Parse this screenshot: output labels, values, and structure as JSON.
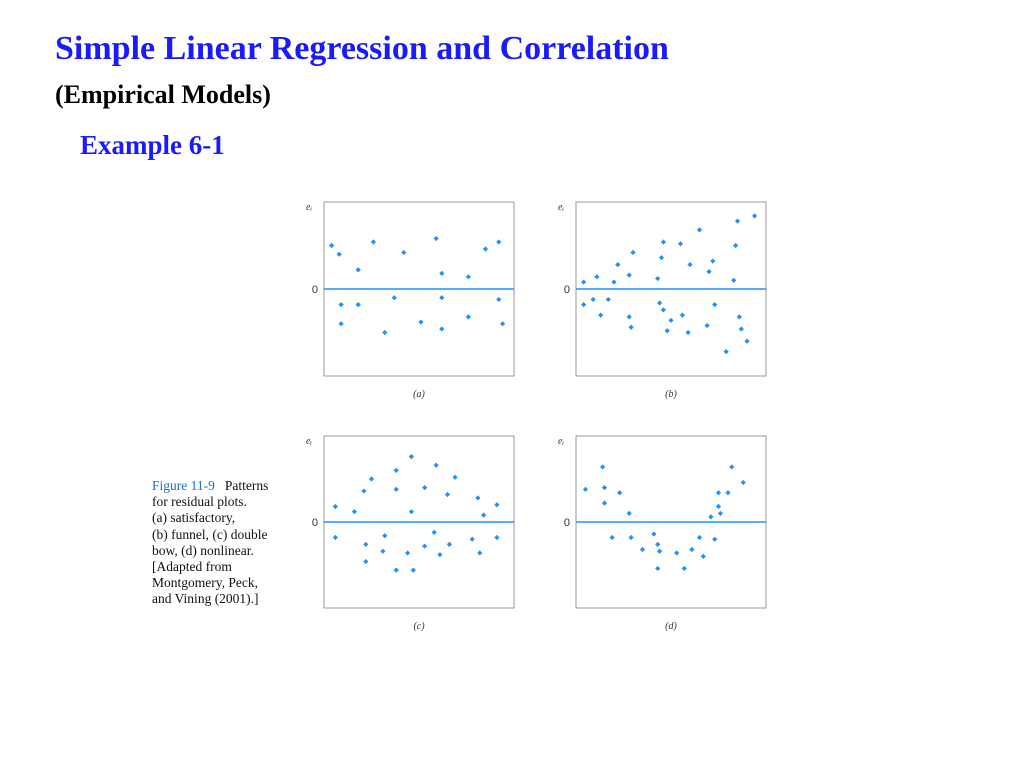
{
  "slide": {
    "title": "Simple Linear Regression and Correlation",
    "subtitle": "(Empirical Models)",
    "example": "Example 6-1"
  },
  "caption": {
    "figure_label": "Figure 11-9",
    "lines": [
      "Patterns",
      "for residual plots.",
      "(a) satisfactory,",
      "(b) funnel, (c) double",
      "bow, (d) nonlinear.",
      "[Adapted from",
      "Montgomery, Peck,",
      "and Vining (2001).]"
    ]
  },
  "colors": {
    "title": "#1a1aff",
    "points": "#1e90ff",
    "zero_line": "#1e90ff"
  },
  "chart_data": [
    {
      "type": "scatter",
      "panel_label": "(a)",
      "ylabel": "eᵢ",
      "zero_tick": "0",
      "xlim": [
        0,
        10
      ],
      "ylim": [
        -5,
        5
      ],
      "points": [
        [
          0.4,
          2.5
        ],
        [
          0.8,
          2.0
        ],
        [
          0.9,
          -0.9
        ],
        [
          0.9,
          -2.0
        ],
        [
          1.8,
          1.1
        ],
        [
          1.8,
          -0.9
        ],
        [
          2.6,
          2.7
        ],
        [
          3.2,
          -2.5
        ],
        [
          3.7,
          -0.5
        ],
        [
          4.2,
          2.1
        ],
        [
          5.1,
          -1.9
        ],
        [
          5.9,
          2.9
        ],
        [
          6.2,
          0.9
        ],
        [
          6.2,
          -0.5
        ],
        [
          6.2,
          -2.3
        ],
        [
          7.6,
          0.7
        ],
        [
          7.6,
          -1.6
        ],
        [
          8.5,
          2.3
        ],
        [
          9.2,
          2.7
        ],
        [
          9.2,
          -0.6
        ],
        [
          9.4,
          -2.0
        ]
      ]
    },
    {
      "type": "scatter",
      "panel_label": "(b)",
      "ylabel": "eᵢ",
      "zero_tick": "0",
      "xlim": [
        0,
        10
      ],
      "ylim": [
        -5,
        5
      ],
      "points": [
        [
          0.4,
          0.4
        ],
        [
          0.4,
          -0.9
        ],
        [
          0.9,
          -0.6
        ],
        [
          1.1,
          0.7
        ],
        [
          1.3,
          -1.5
        ],
        [
          1.7,
          -0.6
        ],
        [
          2.0,
          0.4
        ],
        [
          2.2,
          1.4
        ],
        [
          2.8,
          0.8
        ],
        [
          2.8,
          -1.6
        ],
        [
          2.9,
          -2.2
        ],
        [
          3.0,
          2.1
        ],
        [
          4.3,
          0.6
        ],
        [
          4.4,
          -0.8
        ],
        [
          4.5,
          1.8
        ],
        [
          4.6,
          -1.2
        ],
        [
          4.6,
          2.7
        ],
        [
          4.8,
          -2.4
        ],
        [
          5.0,
          -1.8
        ],
        [
          5.5,
          2.6
        ],
        [
          5.6,
          -1.5
        ],
        [
          5.9,
          -2.5
        ],
        [
          6.0,
          1.4
        ],
        [
          6.5,
          3.4
        ],
        [
          6.9,
          -2.1
        ],
        [
          7.0,
          1.0
        ],
        [
          7.2,
          1.6
        ],
        [
          7.3,
          -0.9
        ],
        [
          7.9,
          -3.6
        ],
        [
          8.3,
          0.5
        ],
        [
          8.4,
          2.5
        ],
        [
          8.5,
          3.9
        ],
        [
          8.6,
          -1.6
        ],
        [
          8.7,
          -2.3
        ],
        [
          9.0,
          -3.0
        ],
        [
          9.4,
          4.2
        ]
      ]
    },
    {
      "type": "scatter",
      "panel_label": "(c)",
      "ylabel": "eᵢ",
      "zero_tick": "0",
      "xlim": [
        0,
        10
      ],
      "ylim": [
        -5,
        5
      ],
      "points": [
        [
          0.6,
          0.9
        ],
        [
          0.6,
          -0.9
        ],
        [
          1.6,
          0.6
        ],
        [
          2.1,
          1.8
        ],
        [
          2.2,
          -1.3
        ],
        [
          2.2,
          -2.3
        ],
        [
          2.5,
          2.5
        ],
        [
          3.1,
          -1.7
        ],
        [
          3.2,
          -0.8
        ],
        [
          3.8,
          1.9
        ],
        [
          3.8,
          3.0
        ],
        [
          3.8,
          -2.8
        ],
        [
          4.4,
          -1.8
        ],
        [
          4.6,
          0.6
        ],
        [
          4.6,
          3.8
        ],
        [
          4.7,
          -2.8
        ],
        [
          5.3,
          2.0
        ],
        [
          5.3,
          -1.4
        ],
        [
          5.8,
          -0.6
        ],
        [
          5.9,
          3.3
        ],
        [
          6.1,
          -1.9
        ],
        [
          6.5,
          1.6
        ],
        [
          6.6,
          -1.3
        ],
        [
          6.9,
          2.6
        ],
        [
          7.8,
          -1.0
        ],
        [
          8.1,
          1.4
        ],
        [
          8.2,
          -1.8
        ],
        [
          8.4,
          0.4
        ],
        [
          9.1,
          1.0
        ],
        [
          9.1,
          -0.9
        ]
      ]
    },
    {
      "type": "scatter",
      "panel_label": "(d)",
      "ylabel": "eᵢ",
      "zero_tick": "0",
      "xlim": [
        0,
        10
      ],
      "ylim": [
        -5,
        5
      ],
      "points": [
        [
          0.5,
          1.9
        ],
        [
          1.4,
          3.2
        ],
        [
          1.5,
          2.0
        ],
        [
          1.5,
          1.1
        ],
        [
          1.9,
          -0.9
        ],
        [
          2.3,
          1.7
        ],
        [
          2.8,
          0.5
        ],
        [
          2.9,
          -0.9
        ],
        [
          3.5,
          -1.6
        ],
        [
          4.1,
          -0.7
        ],
        [
          4.3,
          -1.3
        ],
        [
          4.3,
          -2.7
        ],
        [
          4.4,
          -1.7
        ],
        [
          5.3,
          -1.8
        ],
        [
          5.7,
          -2.7
        ],
        [
          6.1,
          -1.6
        ],
        [
          6.5,
          -0.9
        ],
        [
          6.7,
          -2.0
        ],
        [
          7.1,
          0.3
        ],
        [
          7.3,
          -1.0
        ],
        [
          7.5,
          0.9
        ],
        [
          7.5,
          1.7
        ],
        [
          7.6,
          0.5
        ],
        [
          8.0,
          1.7
        ],
        [
          8.2,
          3.2
        ],
        [
          8.8,
          2.3
        ]
      ]
    }
  ]
}
